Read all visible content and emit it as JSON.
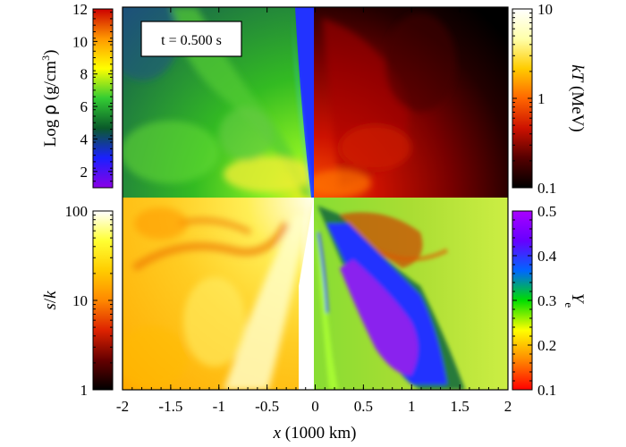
{
  "figure": {
    "time_label": "t = 0.500 s",
    "xaxis": {
      "label_var": "x",
      "label_unit": " (1000 km)",
      "ticks": [
        "-2",
        "-1.5",
        "-1",
        "-0.5",
        "0",
        "0.5",
        "1",
        "1.5",
        "2"
      ],
      "range": [
        -2,
        2
      ]
    },
    "colorbars": {
      "density": {
        "label_prefix": "Log ",
        "label_symbol": "ρ",
        "label_unit": " (g/cm",
        "label_exp": "3",
        "label_close": ")",
        "ticks": [
          "2",
          "4",
          "6",
          "8",
          "10",
          "12"
        ],
        "range": [
          1,
          12
        ],
        "colors": [
          "#8a00e6",
          "#1a20ff",
          "#0a5a2a",
          "#33cc33",
          "#ffff00",
          "#ff9900",
          "#cc0000"
        ]
      },
      "temperature": {
        "label_var": "kT",
        "label_unit": " (MeV)",
        "ticks": [
          "0.1",
          "1",
          "10"
        ],
        "range": [
          0.1,
          10
        ],
        "scale": "log",
        "colors": [
          "#000000",
          "#550000",
          "#cc1100",
          "#ff6600",
          "#ffcc00",
          "#ffffaa",
          "#ffffff"
        ]
      },
      "entropy": {
        "label_var": "s",
        "label_sep": "/",
        "label_var2": "k",
        "ticks": [
          "1",
          "10",
          "100"
        ],
        "range": [
          1,
          100
        ],
        "scale": "log",
        "colors": [
          "#000000",
          "#660000",
          "#dd2200",
          "#ff8800",
          "#ffcc00",
          "#ffff33",
          "#ffffff"
        ]
      },
      "electron_fraction": {
        "label_var": "Y",
        "label_sub": "e",
        "ticks": [
          "0.1",
          "0.2",
          "0.3",
          "0.4",
          "0.5"
        ],
        "range": [
          0.1,
          0.5
        ],
        "colors": [
          "#ff0000",
          "#ff8800",
          "#ffff00",
          "#00dd00",
          "#0066ff",
          "#6600ff",
          "#aa00ff"
        ]
      }
    }
  }
}
